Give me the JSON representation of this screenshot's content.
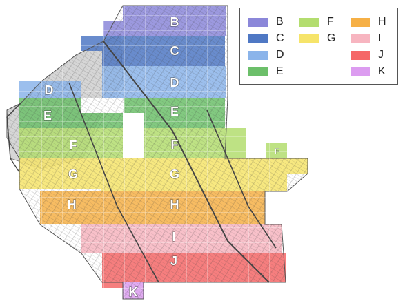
{
  "zones": [
    {
      "id": "B",
      "color": "#8b87d9"
    },
    {
      "id": "C",
      "color": "#4f78c4"
    },
    {
      "id": "D",
      "color": "#8bb4ea"
    },
    {
      "id": "E",
      "color": "#6cbf6a"
    },
    {
      "id": "F",
      "color": "#b3dd6f"
    },
    {
      "id": "G",
      "color": "#f6e46a"
    },
    {
      "id": "H",
      "color": "#f6b046"
    },
    {
      "id": "I",
      "color": "#f7b5c0"
    },
    {
      "id": "J",
      "color": "#f56767"
    },
    {
      "id": "K",
      "color": "#dc9cf0"
    }
  ],
  "map_labels": [
    "B",
    "C",
    "D",
    "D",
    "E",
    "E",
    "F",
    "F",
    "F",
    "G",
    "G",
    "H",
    "H",
    "I",
    "J",
    "K"
  ]
}
